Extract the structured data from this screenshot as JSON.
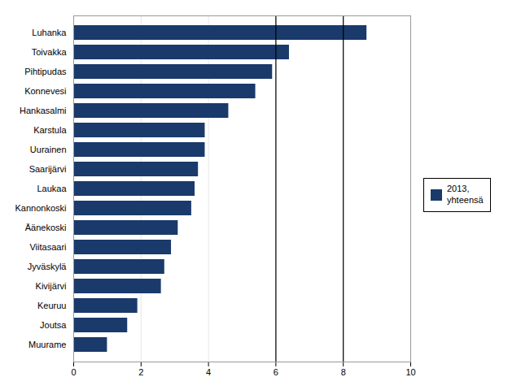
{
  "chart_data": {
    "type": "bar",
    "orientation": "horizontal",
    "categories": [
      "Muurame",
      "Joutsa",
      "Keuruu",
      "Kivijärvi",
      "Jyväskylä",
      "Viitasaari",
      "Äänekoski",
      "Kannonkoski",
      "Laukaa",
      "Saarijärvi",
      "Uurainen",
      "Karstula",
      "Hankasalmi",
      "Konnevesi",
      "Pihtipudas",
      "Toivakka",
      "Luhanka"
    ],
    "series": [
      {
        "name": "2013,\nyhteensä",
        "color": "#1a3a6b",
        "values": [
          1.0,
          1.6,
          1.9,
          2.6,
          2.7,
          2.9,
          3.1,
          3.5,
          3.6,
          3.7,
          3.9,
          3.9,
          4.6,
          5.4,
          5.9,
          6.4,
          8.7
        ]
      }
    ],
    "xlim": [
      0,
      10
    ],
    "xticks": [
      0,
      2,
      4,
      6,
      8,
      10
    ],
    "grid": true,
    "legend": "right",
    "vlines": [
      6,
      8
    ]
  }
}
